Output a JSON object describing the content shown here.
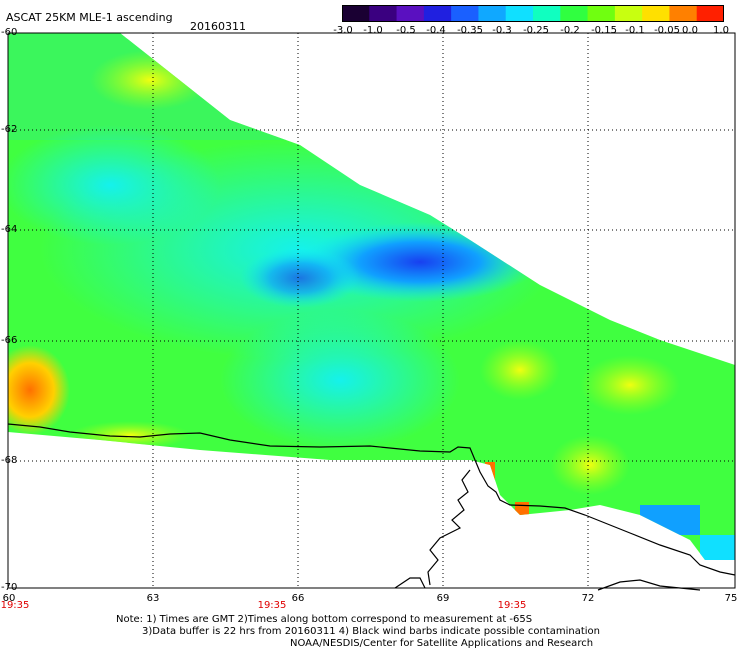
{
  "title": "ASCAT 25KM MLE-1 ascending",
  "date": "20160311",
  "colorbar": {
    "labels": [
      "-3.0",
      "-1.0",
      "-0.5",
      "-0.4",
      "-0.35",
      "-0.3",
      "-0.25",
      "-0.2",
      "-0.15",
      "-0.1",
      "-0.05",
      "0.0",
      "1.0"
    ],
    "colors": [
      "#1a0033",
      "#3a0080",
      "#5a10c0",
      "#2020e0",
      "#1a60ff",
      "#10a8ff",
      "#10e0ff",
      "#10ffc0",
      "#30ff40",
      "#70ff10",
      "#c8ff10",
      "#ffe000",
      "#ff8000",
      "#ff2000"
    ]
  },
  "axes": {
    "lat_labels": [
      "-60",
      "-62",
      "-64",
      "-66",
      "-68",
      "-70"
    ],
    "lon_labels": [
      "60",
      "63",
      "66",
      "69",
      "72",
      "75"
    ],
    "time_labels": [
      "19:35",
      "19:35",
      "19:35"
    ]
  },
  "notes": {
    "line1": "Note: 1) Times are GMT 2)Times along bottom correspond to measurement at -65S",
    "line2": "3)Data buffer is 22 hrs from 20160311 4) Black wind barbs indicate possible contamination",
    "line3": "NOAA/NESDIS/Center for Satellite Applications and Research"
  },
  "colors": {
    "coastline": "#000000",
    "grid": "#000000",
    "time_label": "#e00000"
  }
}
